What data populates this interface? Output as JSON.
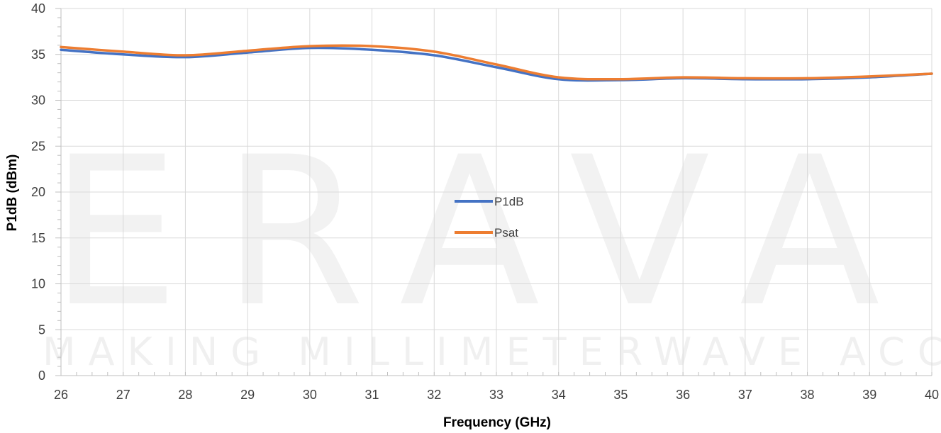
{
  "watermark": {
    "main_text": "ERAVANT",
    "tagline": "MAKING MILLIMETERWAVE ACCESSIB"
  },
  "chart_data": {
    "type": "line",
    "title": "",
    "xlabel": "Frequency (GHz)",
    "ylabel": "P1dB (dBm)",
    "xlim": [
      26,
      40
    ],
    "ylim": [
      0,
      40
    ],
    "x_ticks": [
      26,
      27,
      28,
      29,
      30,
      31,
      32,
      33,
      34,
      35,
      36,
      37,
      38,
      39,
      40
    ],
    "y_ticks": [
      0,
      5,
      10,
      15,
      20,
      25,
      30,
      35,
      40
    ],
    "grid": true,
    "legend_position": "center",
    "x": [
      26,
      27,
      28,
      29,
      30,
      31,
      32,
      33,
      34,
      35,
      36,
      37,
      38,
      39,
      40
    ],
    "series": [
      {
        "name": "P1dB",
        "color": "#4472c4",
        "values": [
          35.5,
          35.0,
          34.7,
          35.2,
          35.7,
          35.5,
          34.9,
          33.6,
          32.3,
          32.2,
          32.4,
          32.3,
          32.3,
          32.5,
          32.9
        ]
      },
      {
        "name": "Psat",
        "color": "#ed7d31",
        "values": [
          35.8,
          35.3,
          34.9,
          35.4,
          35.9,
          35.9,
          35.3,
          33.9,
          32.5,
          32.3,
          32.5,
          32.4,
          32.4,
          32.6,
          32.9
        ]
      }
    ]
  }
}
